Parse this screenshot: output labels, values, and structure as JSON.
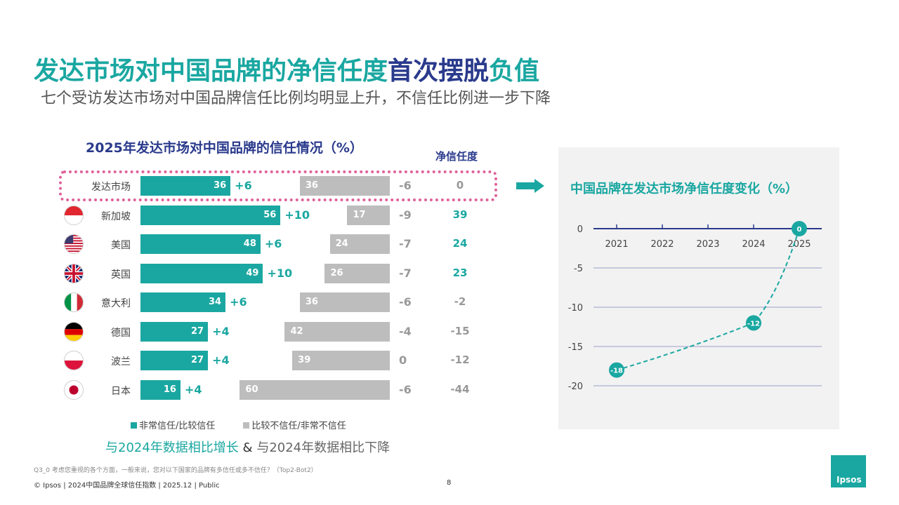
{
  "title": {
    "part1": "发达市场对中国品牌的净信任度",
    "part2": "首次摆脱",
    "part3": "负值"
  },
  "subtitle": "七个受访发达市场对中国品牌信任比例均明显上升，不信任比例进一步下降",
  "colors": {
    "teal": "#1aa7a1",
    "gray": "#bdbdbd",
    "navy": "#2a3a8c",
    "highlight": "#e0619a"
  },
  "chart_data": [
    {
      "type": "bar",
      "title": "2025年发达市场对中国品牌的信任情况（%）",
      "net_header": "净信任度",
      "categories": [
        "发达市场",
        "新加坡",
        "美国",
        "英国",
        "意大利",
        "德国",
        "波兰",
        "日本"
      ],
      "flags": [
        "none",
        "singapore-flag-icon",
        "usa-flag-icon",
        "uk-flag-icon",
        "italy-flag-icon",
        "germany-flag-icon",
        "poland-flag-icon",
        "japan-flag-icon"
      ],
      "series": [
        {
          "name": "非常信任/比较信任",
          "values": [
            36,
            56,
            48,
            49,
            34,
            27,
            27,
            16
          ],
          "change_vs_2024": [
            "+6",
            "+10",
            "+6",
            "+10",
            "+6",
            "+4",
            "+4",
            "+4"
          ]
        },
        {
          "name": "比较不信任/非常不信任",
          "values": [
            36,
            17,
            24,
            26,
            36,
            42,
            39,
            60
          ],
          "change_vs_2024": [
            "-6",
            "-9",
            "-7",
            "-7",
            "-6",
            "-4",
            "0",
            "-6"
          ]
        }
      ],
      "net_trust": [
        "0",
        "39",
        "24",
        "23",
        "-2",
        "-15",
        "-12",
        "-44"
      ],
      "legend_placement": "bottom",
      "note_up": "与2024年数据相比增长",
      "note_amp": "&",
      "note_down": "与2024年数据相比下降"
    },
    {
      "type": "line",
      "title": "中国品牌在发达市场净信任度变化（%）",
      "x": [
        "2021",
        "2022",
        "2023",
        "2024",
        "2025"
      ],
      "points": [
        {
          "x": "2021",
          "y": -18,
          "label": "-18"
        },
        {
          "x": "2024",
          "y": -12,
          "label": "-12"
        },
        {
          "x": "2025",
          "y": 0,
          "label": "0"
        }
      ],
      "yticks": [
        "0",
        "-5",
        "-10",
        "-15",
        "-20"
      ],
      "ylim": [
        -20,
        0
      ],
      "grid": true,
      "line_style": "dashed"
    }
  ],
  "footer": {
    "question": "Q3_0 考虑您重视的各个方面，一般来说，您对以下国家的品牌有多信任或多不信任？（Top2-Bot2）",
    "copyright": "© Ipsos | 2024中国品牌全球信任指数 | 2025.12 | Public",
    "page": "8",
    "logo": "Ipsos"
  }
}
